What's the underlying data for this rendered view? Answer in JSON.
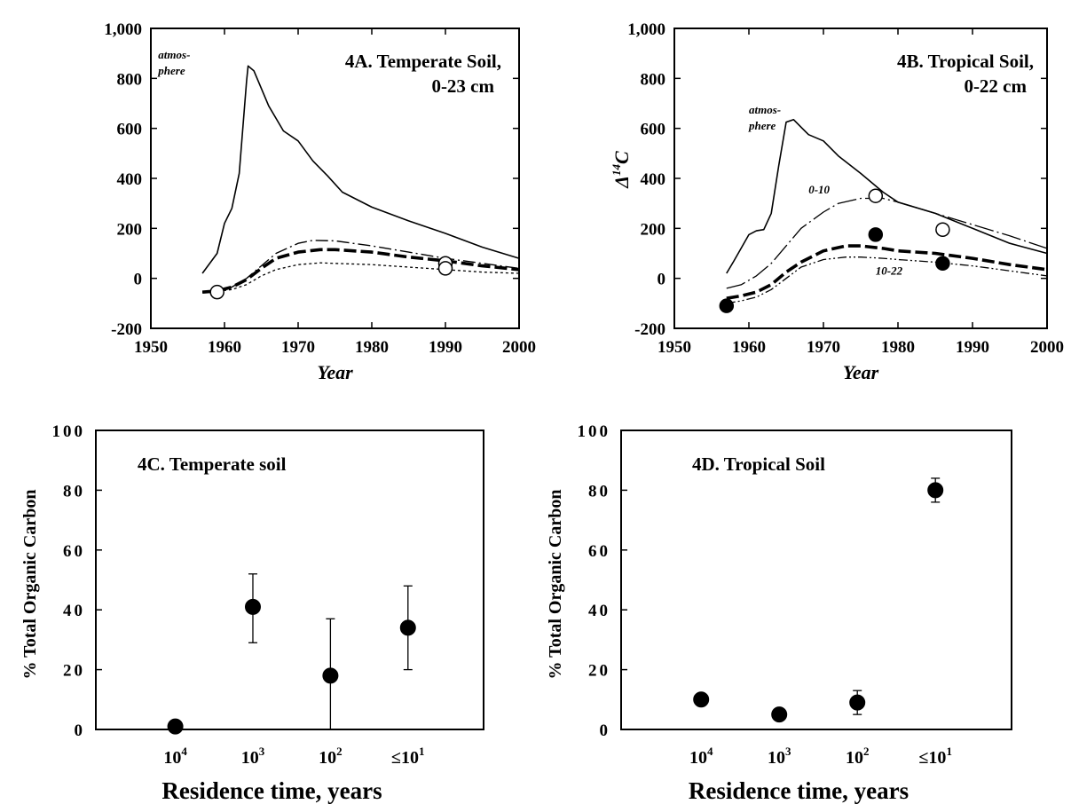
{
  "chart_data": [
    {
      "id": "4A",
      "type": "line",
      "title_line1": "4A. Temperate Soil,",
      "title_line2": "0-23 cm",
      "xlabel": "Year",
      "ylabel": "",
      "xlim": [
        1950,
        2000
      ],
      "ylim": [
        -200,
        1000
      ],
      "xticks": [
        "1950",
        "1960",
        "1970",
        "1980",
        "1990",
        "2000"
      ],
      "yticks": [
        "-200",
        "0",
        "200",
        "400",
        "600",
        "800",
        "1,000"
      ],
      "annotations": [
        {
          "text_line1": "atmos-",
          "text_line2": "phere",
          "x": 1951,
          "y": 880
        }
      ],
      "series": [
        {
          "name": "atmosphere",
          "style": "solid",
          "x": [
            1957,
            1959,
            1960,
            1961,
            1962,
            1963,
            1963.2,
            1964,
            1966,
            1968,
            1970,
            1972,
            1974,
            1976,
            1980,
            1985,
            1990,
            1995,
            2000
          ],
          "y": [
            20,
            100,
            220,
            280,
            420,
            790,
            850,
            830,
            690,
            590,
            550,
            470,
            410,
            345,
            285,
            230,
            180,
            125,
            80
          ]
        },
        {
          "name": "",
          "style": "dashdot",
          "x": [
            1957,
            1959,
            1961,
            1963,
            1965,
            1967,
            1970,
            1972,
            1975,
            1980,
            1985,
            1990,
            1995,
            2000
          ],
          "y": [
            -55,
            -50,
            -35,
            0,
            50,
            100,
            140,
            152,
            150,
            130,
            105,
            80,
            60,
            40
          ]
        },
        {
          "name": "",
          "style": "heavy-dashed",
          "x": [
            1957,
            1959,
            1961,
            1963,
            1965,
            1967,
            1970,
            1973,
            1975,
            1980,
            1985,
            1990,
            1995,
            2000
          ],
          "y": [
            -55,
            -50,
            -35,
            -5,
            40,
            80,
            105,
            115,
            115,
            105,
            85,
            70,
            50,
            35
          ]
        },
        {
          "name": "",
          "style": "dotted",
          "x": [
            1957,
            1959,
            1961,
            1963,
            1965,
            1967,
            1970,
            1973,
            1975,
            1980,
            1985,
            1990,
            1995,
            2000
          ],
          "y": [
            -55,
            -52,
            -45,
            -25,
            10,
            35,
            55,
            62,
            60,
            55,
            45,
            35,
            25,
            20
          ]
        }
      ],
      "points": [
        {
          "x": 1959,
          "y": -55,
          "filled": false,
          "err": 10
        },
        {
          "x": 1990,
          "y": 60,
          "filled": false,
          "err": 18
        },
        {
          "x": 1990,
          "y": 40,
          "filled": false,
          "err": 0
        }
      ]
    },
    {
      "id": "4B",
      "type": "line",
      "title_line1": "4B. Tropical Soil,",
      "title_line2": "0-22 cm",
      "xlabel": "Year",
      "ylabel": "Δ",
      "ylabel_sup": "14",
      "ylabel_tail": "C",
      "xlim": [
        1950,
        2000
      ],
      "ylim": [
        -200,
        1000
      ],
      "xticks": [
        "1950",
        "1960",
        "1970",
        "1980",
        "1990",
        "2000"
      ],
      "yticks": [
        "-200",
        "0",
        "200",
        "400",
        "600",
        "800",
        "1,000"
      ],
      "annotations": [
        {
          "text_line1": "atmos-",
          "text_line2": "phere",
          "x": 1960,
          "y": 660
        },
        {
          "text_line1": "0-10",
          "text_line2": "",
          "x": 1968,
          "y": 340
        },
        {
          "text_line1": "10-22",
          "text_line2": "",
          "x": 1977,
          "y": 15
        }
      ],
      "series": [
        {
          "name": "atmosphere",
          "style": "solid",
          "x": [
            1957,
            1958,
            1960,
            1961,
            1962,
            1963,
            1964,
            1965,
            1966,
            1967,
            1968,
            1970,
            1972,
            1975,
            1978,
            1980,
            1985,
            1990,
            1995,
            2000
          ],
          "y": [
            20,
            70,
            175,
            190,
            195,
            260,
            450,
            625,
            635,
            605,
            575,
            550,
            490,
            420,
            345,
            305,
            260,
            200,
            140,
            100
          ]
        },
        {
          "name": "0-10",
          "style": "longdash-dot",
          "x": [
            1957,
            1959,
            1961,
            1963,
            1965,
            1967,
            1970,
            1972,
            1975,
            1978,
            1980,
            1985,
            1990,
            1995,
            2000
          ],
          "y": [
            -40,
            -25,
            10,
            60,
            130,
            200,
            265,
            300,
            320,
            320,
            305,
            260,
            215,
            170,
            120
          ]
        },
        {
          "name": "",
          "style": "heavy-dashed",
          "x": [
            1957,
            1959,
            1961,
            1963,
            1965,
            1967,
            1970,
            1973,
            1975,
            1978,
            1980,
            1985,
            1990,
            1995,
            2000
          ],
          "y": [
            -80,
            -70,
            -55,
            -25,
            25,
            65,
            110,
            130,
            130,
            120,
            110,
            100,
            80,
            55,
            35
          ]
        },
        {
          "name": "10-22",
          "style": "dashdotdot",
          "x": [
            1957,
            1959,
            1961,
            1963,
            1965,
            1967,
            1970,
            1973,
            1975,
            1978,
            1980,
            1985,
            1990,
            1995,
            2000
          ],
          "y": [
            -100,
            -90,
            -75,
            -45,
            0,
            45,
            75,
            85,
            85,
            80,
            75,
            65,
            50,
            30,
            10
          ]
        }
      ],
      "points": [
        {
          "x": 1957,
          "y": -110,
          "filled": true,
          "err": 0
        },
        {
          "x": 1977,
          "y": 330,
          "filled": false,
          "err": 0
        },
        {
          "x": 1977,
          "y": 175,
          "filled": true,
          "err": 0
        },
        {
          "x": 1986,
          "y": 195,
          "filled": false,
          "err": 0
        },
        {
          "x": 1986,
          "y": 60,
          "filled": true,
          "err": 0
        }
      ]
    },
    {
      "id": "4C",
      "type": "scatter",
      "title": "4C.  Temperate  soil",
      "xlabel": "Residence  time,  years",
      "ylabel": "%  Total  Organic  Carbon",
      "ylim": [
        0,
        100
      ],
      "yticks": [
        "0",
        "20",
        "40",
        "60",
        "80",
        "100"
      ],
      "categories": [
        {
          "base": "10",
          "sup": "4"
        },
        {
          "base": "10",
          "sup": "3"
        },
        {
          "base": "10",
          "sup": "2"
        },
        {
          "base": "≤10",
          "sup": "1"
        }
      ],
      "points": [
        {
          "cat": 0,
          "y": 1,
          "err_low": 1,
          "err_high": 1
        },
        {
          "cat": 1,
          "y": 41,
          "err_low": 29,
          "err_high": 52
        },
        {
          "cat": 2,
          "y": 18,
          "err_low": 0,
          "err_high": 37
        },
        {
          "cat": 3,
          "y": 34,
          "err_low": 20,
          "err_high": 48
        }
      ]
    },
    {
      "id": "4D",
      "type": "scatter",
      "title": "4D.  Tropical  Soil",
      "xlabel": "Residence  time,  years",
      "ylabel": "%  Total  Organic  Carbon",
      "ylim": [
        0,
        100
      ],
      "yticks": [
        "0",
        "20",
        "40",
        "60",
        "80",
        "100"
      ],
      "categories": [
        {
          "base": "10",
          "sup": "4"
        },
        {
          "base": "10",
          "sup": "3"
        },
        {
          "base": "10",
          "sup": "2"
        },
        {
          "base": "≤10",
          "sup": "1"
        }
      ],
      "points": [
        {
          "cat": 0,
          "y": 10,
          "err_low": 10,
          "err_high": 10
        },
        {
          "cat": 1,
          "y": 5,
          "err_low": 5,
          "err_high": 5
        },
        {
          "cat": 2,
          "y": 9,
          "err_low": 5,
          "err_high": 13
        },
        {
          "cat": 3,
          "y": 80,
          "err_low": 76,
          "err_high": 84
        }
      ]
    }
  ]
}
